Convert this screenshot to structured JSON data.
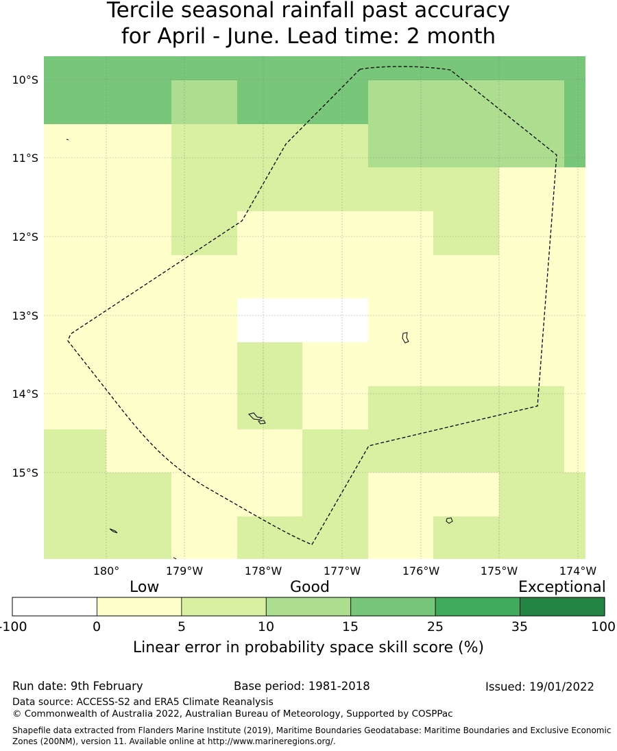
{
  "title": {
    "line1": "Tercile seasonal rainfall past accuracy",
    "line2": "for April - June. Lead time: 2 month"
  },
  "map": {
    "lat_ticks": [
      "10°S",
      "11°S",
      "12°S",
      "13°S",
      "14°S",
      "15°S"
    ],
    "lon_ticks": [
      "180°",
      "179°W",
      "178°W",
      "177°W",
      "176°W",
      "175°W",
      "174°W"
    ]
  },
  "colorbar": {
    "labels": {
      "low": "Low",
      "good": "Good",
      "exceptional": "Exceptional"
    },
    "bounds": [
      "-100",
      "0",
      "5",
      "10",
      "15",
      "25",
      "35",
      "100"
    ],
    "colors": [
      "#ffffff",
      "#ffffcc",
      "#d9f0a3",
      "#addd8e",
      "#78c679",
      "#41ab5d",
      "#238443"
    ],
    "title": "Linear error in probability space skill score (%)"
  },
  "footer": {
    "run_date": "Run date: 9th February",
    "base_period": "Base period: 1981-2018",
    "issued": "Issued: 19/01/2022",
    "data_source": "Data source: ACCESS-S2 and ERA5 Climate Reanalysis",
    "copyright": "© Commonwealth of Australia 2022, Australian Bureau of Meteorology, Supported by COSPPac",
    "shapefile": "Shapefile data extracted from Flanders Marine Institute (2019), Maritime Boundaries Geodatabase: Maritime Boundaries and Exclusive Economic Zones (200NM), version 11. Available online at http://www.marineregions.org/."
  }
}
